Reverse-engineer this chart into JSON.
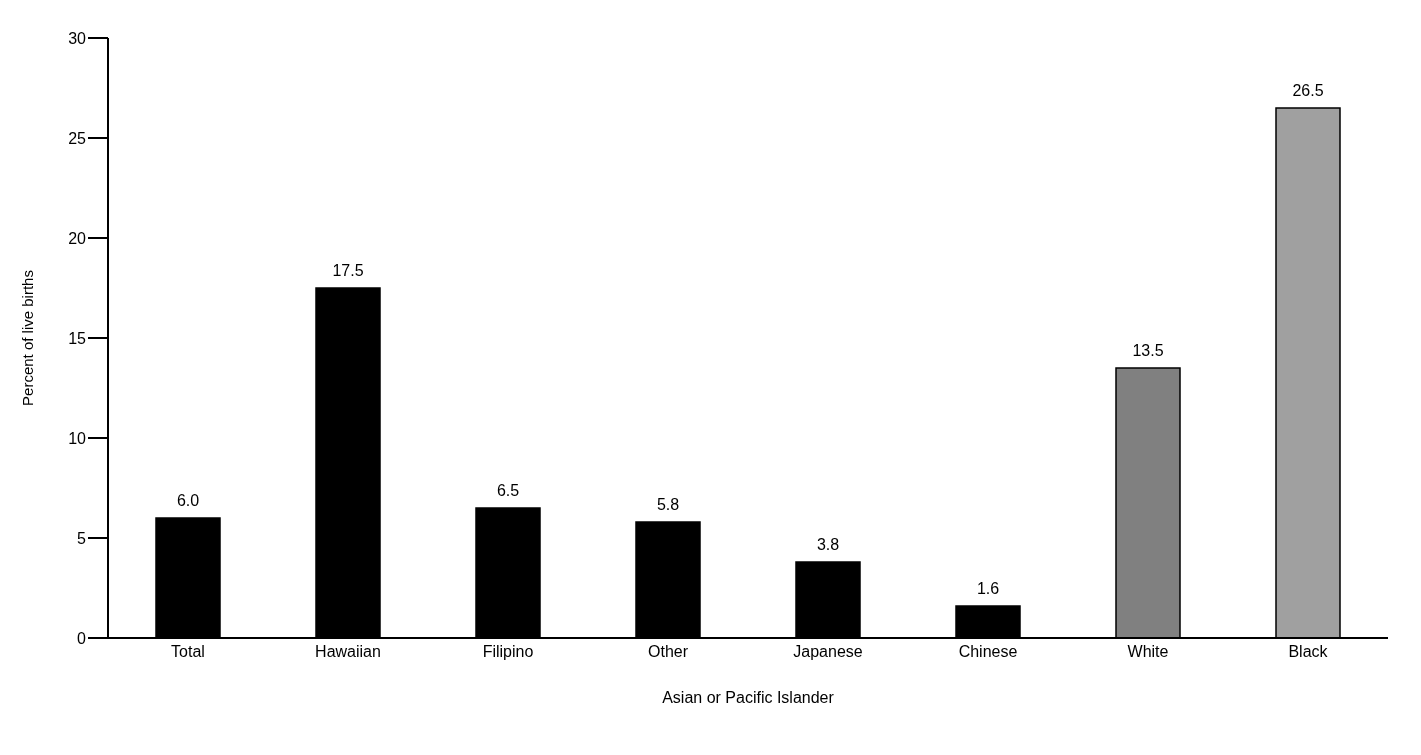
{
  "chart_data": {
    "type": "bar",
    "ylabel": "Percent of live births",
    "xlabel": "Asian or Pacific Islander",
    "categories": [
      "Total",
      "Hawaiian",
      "Filipino",
      "Other",
      "Japanese",
      "Chinese",
      "White",
      "Black"
    ],
    "values": [
      6.0,
      17.5,
      6.5,
      5.8,
      3.8,
      1.6,
      13.5,
      26.5
    ],
    "colors": [
      "#000000",
      "#000000",
      "#000000",
      "#000000",
      "#000000",
      "#000000",
      "#808080",
      "#a0a0a0"
    ],
    "value_labels": [
      "6.0",
      "17.5",
      "6.5",
      "5.8",
      "3.8",
      "1.6",
      "13.5",
      "26.5"
    ],
    "ylim": [
      0,
      30
    ],
    "yticks": [
      0,
      5,
      10,
      15,
      20,
      25,
      30
    ],
    "grid": false,
    "legend": false
  }
}
